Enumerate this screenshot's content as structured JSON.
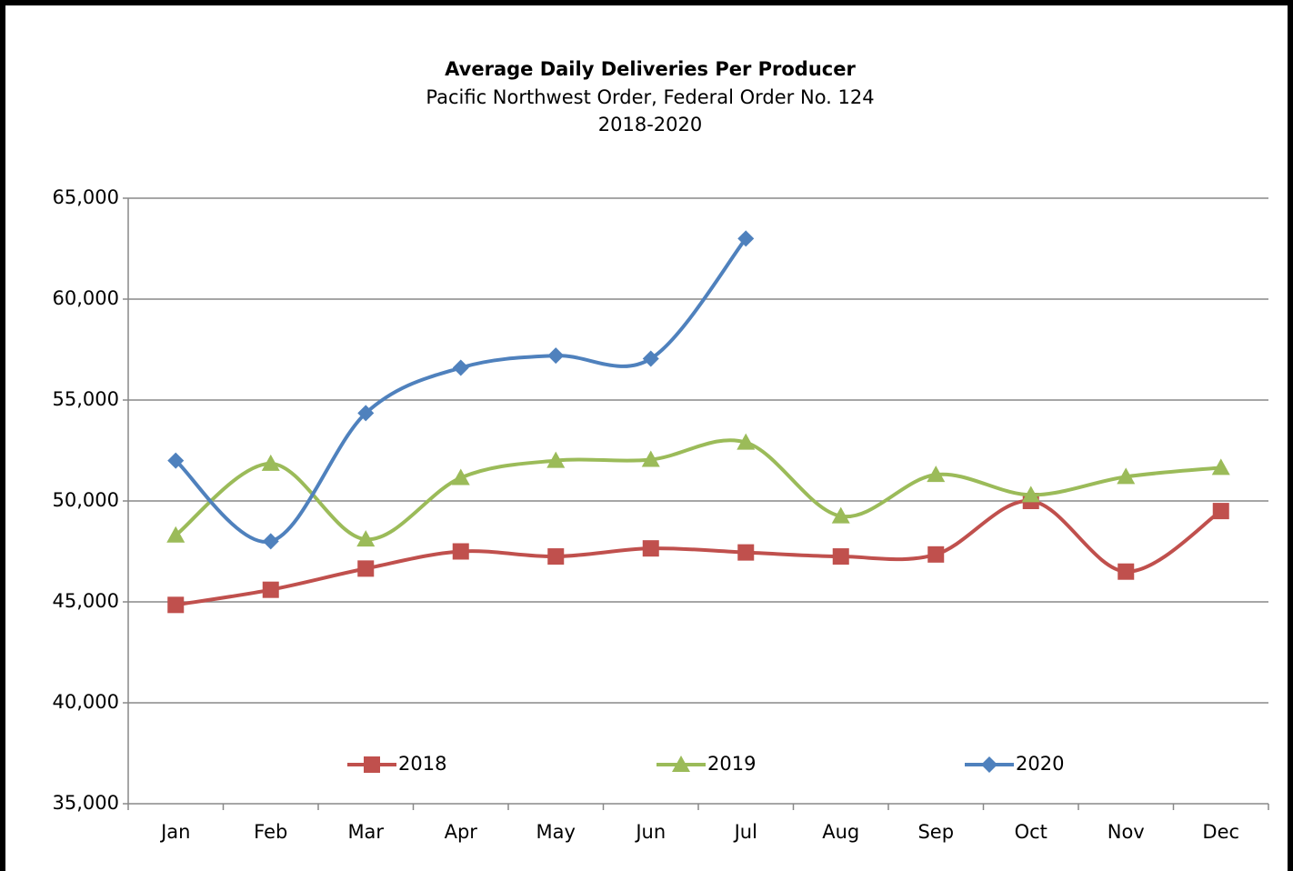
{
  "chart_data": {
    "type": "line",
    "title": "Average Daily Deliveries Per Producer",
    "subtitle": [
      "Pacific Northwest Order, Federal Order No. 124",
      "2018-2020"
    ],
    "categories": [
      "Jan",
      "Feb",
      "Mar",
      "Apr",
      "May",
      "Jun",
      "Jul",
      "Aug",
      "Sep",
      "Oct",
      "Nov",
      "Dec"
    ],
    "series": [
      {
        "name": "2018",
        "color": "#c0504d",
        "marker": "square",
        "values": [
          44850,
          45600,
          46650,
          47500,
          47250,
          47650,
          47450,
          47250,
          47350,
          50000,
          46500,
          49500
        ]
      },
      {
        "name": "2019",
        "color": "#9bbb59",
        "marker": "triangle",
        "values": [
          48300,
          51850,
          48100,
          51150,
          52000,
          52050,
          52900,
          49250,
          51300,
          50300,
          51200,
          51650
        ]
      },
      {
        "name": "2020",
        "color": "#4f81bd",
        "marker": "diamond",
        "values": [
          52000,
          48000,
          54350,
          56600,
          57200,
          57050,
          63000,
          null,
          null,
          null,
          null,
          null
        ]
      }
    ],
    "ylim": [
      35000,
      65000
    ],
    "yticks": [
      {
        "value": 35000,
        "label": "35,000"
      },
      {
        "value": 40000,
        "label": "40,000"
      },
      {
        "value": 45000,
        "label": "45,000"
      },
      {
        "value": 50000,
        "label": "50,000"
      },
      {
        "value": 55000,
        "label": "55,000"
      },
      {
        "value": 60000,
        "label": "60,000"
      },
      {
        "value": 65000,
        "label": "65,000"
      }
    ],
    "grid": true,
    "smooth": true,
    "legend": "bottom"
  }
}
